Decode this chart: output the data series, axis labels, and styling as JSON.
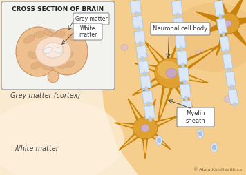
{
  "bg_color": "#faebd0",
  "orange_zone_color": "#f0c080",
  "neuron_color_dark": "#c8820a",
  "neuron_color_mid": "#e0a030",
  "neuron_color_light": "#f0c878",
  "neuron_body_fill": "#e8a828",
  "nucleus_fill": "#c8a8c0",
  "nucleus_edge": "#b090a8",
  "small_nucleus_fill": "#d0b0c8",
  "myelin_fill": "#dce8f8",
  "myelin_edge": "#b0c8e0",
  "axon_core_color": "#d4b060",
  "node_fill": "#c8d8f0",
  "inset_bg": "#f5f5f2",
  "inset_border": "#aaaaaa",
  "brain_outer": "#e8b888",
  "brain_folds": "#d49868",
  "brain_inner": "#f8ddc8",
  "brain_wm": "#faeae0",
  "brain_ventricle": "#f5f0ee",
  "callout_bg": "#ffffff",
  "callout_border": "#888888",
  "text_color": "#333333",
  "region_text_color": "#555555",
  "title_text": "CROSS SECTION OF BRAIN",
  "label_grey": "Grey matter",
  "label_white": "White\nmatter",
  "label_neuronal": "Neuronal cell body",
  "label_myelin": "Myelin\nsheath",
  "label_grey_cortex": "Grey matter (cortex)",
  "label_white_matter": "White matter",
  "label_copyright": "© AboutKidsHealth.ca"
}
